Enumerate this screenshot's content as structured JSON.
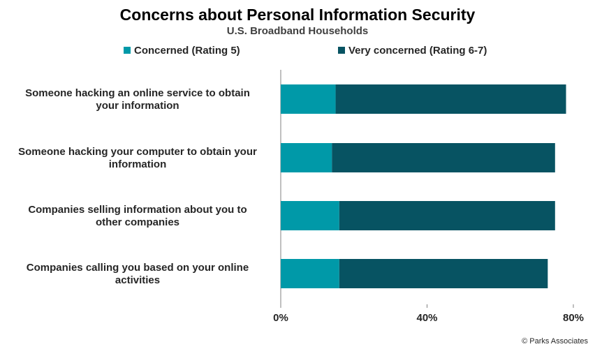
{
  "chart_data": {
    "type": "bar",
    "orientation": "horizontal",
    "stacked": true,
    "title": "Concerns about Personal Information Security",
    "subtitle": "U.S. Broadband Households",
    "categories": [
      "Someone hacking an online service to obtain your information",
      "Someone hacking your computer to obtain your information",
      "Companies selling information about you to other companies",
      "Companies calling you based on your online activities"
    ],
    "series": [
      {
        "name": "Concerned (Rating 5)",
        "color": "#0099a8",
        "values": [
          15,
          14,
          16,
          16
        ]
      },
      {
        "name": "Very concerned (Rating 6-7)",
        "color": "#075362",
        "values": [
          63,
          61,
          59,
          57
        ]
      }
    ],
    "xlim": [
      0,
      80
    ],
    "x_ticks": [
      "0%",
      "40%",
      "80%"
    ],
    "x_tick_values": [
      0,
      40,
      80
    ],
    "legend_position": "top",
    "grid": false
  },
  "credit": "© Parks Associates"
}
